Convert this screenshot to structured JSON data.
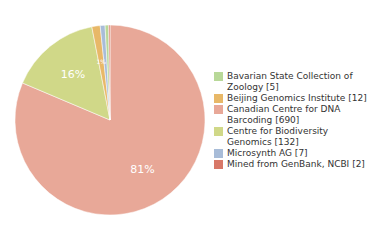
{
  "chart_data": {
    "type": "pie",
    "categories": [
      "Canadian Centre for DNA\nBarcoding [690]",
      "Centre for Biodiversity\nGenomics [132]",
      "Beijing Genomics Institute [12]",
      "Microsynth AG [7]",
      "Bavarian State Collection of\nZoology [5]",
      "Mined from GenBank, NCBI [2]"
    ],
    "values": [
      690,
      132,
      12,
      7,
      5,
      2
    ],
    "value_labels": [
      "81%",
      "16%",
      "1%",
      null,
      null,
      null
    ],
    "data_labels": true,
    "colors": [
      "#e8a898",
      "#d0d888",
      "#e8b868",
      "#a8bcd8",
      "#b8d898",
      "#d87868"
    ],
    "legend": "right"
  }
}
